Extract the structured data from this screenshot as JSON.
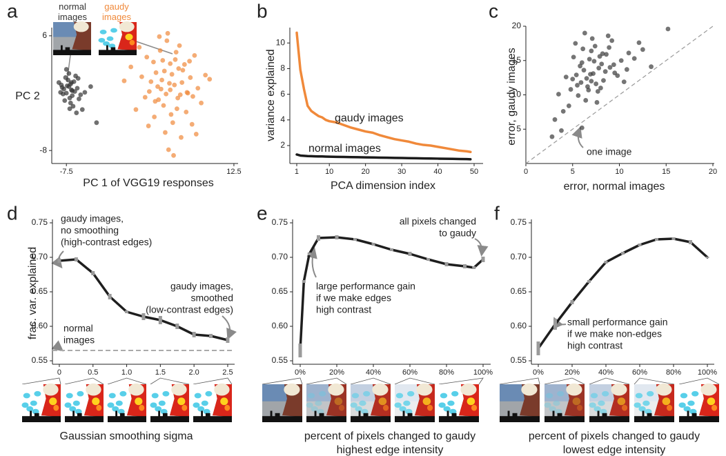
{
  "chart_data": [
    {
      "type": "scatter",
      "panel_label": "a",
      "xlabel": "PC 1 of VGG19 responses",
      "ylabel": "PC 2",
      "xlim": [
        -9,
        13
      ],
      "ylim": [
        -9.5,
        7
      ],
      "xticks": [
        -7.5,
        12.5
      ],
      "yticks": [
        -8,
        6
      ],
      "series": [
        {
          "name": "normal images",
          "color": "#333333",
          "x": [
            -7.8,
            -7.2,
            -6.9,
            -7.5,
            -6.5,
            -7.0,
            -8.0,
            -6.8,
            -7.3,
            -6.2,
            -7.6,
            -7.1,
            -6.6,
            -8.2,
            -7.4,
            -6.9,
            -7.7,
            -6.4,
            -7.0,
            -7.2,
            -5.8,
            -6.1,
            -8.4,
            -7.9,
            -6.7,
            -5.3,
            -4.6,
            -5.6,
            -3.9,
            -6.3,
            -7.5,
            -6.0,
            -7.1,
            -8.1,
            -6.8
          ],
          "values": [
            -0.5,
            -0.2,
            0.3,
            -1.0,
            -0.8,
            0.1,
            -0.3,
            -1.3,
            0.6,
            -0.4,
            0.9,
            -1.6,
            0.4,
            -0.9,
            -0.1,
            -0.6,
            -1.9,
            1.1,
            -2.2,
            1.4,
            -1.2,
            0.8,
            0.3,
            -1.1,
            -2.6,
            -0.9,
            -0.2,
            -3.0,
            -4.6,
            -3.4,
            1.9,
            -1.7,
            -2.9,
            0.0,
            -0.7
          ]
        },
        {
          "name": "gaudy images",
          "color": "#f0893a",
          "x": [
            4.8,
            3.2,
            6.1,
            5.5,
            2.4,
            7.3,
            4.1,
            5.9,
            3.7,
            6.8,
            1.5,
            8.2,
            4.5,
            5.2,
            2.9,
            6.4,
            3.5,
            7.8,
            4.9,
            5.7,
            0.8,
            9.1,
            3.9,
            6.0,
            4.3,
            2.1,
            7.0,
            5.4,
            3.0,
            6.6,
            4.6,
            8.6,
            1.9,
            5.1,
            3.4,
            7.5,
            4.0,
            6.2,
            2.6,
            5.8,
            4.7,
            0.2,
            9.6,
            3.6,
            6.9,
            5.0,
            2.3,
            7.2,
            4.4,
            5.6,
            -0.6,
            8.0,
            3.1,
            6.3,
            4.2,
            1.2,
            5.3,
            7.6,
            3.8,
            4.9
          ],
          "values": [
            0.2,
            1.5,
            -1.2,
            3.1,
            -0.8,
            0.9,
            -2.5,
            2.0,
            4.2,
            -3.3,
            1.0,
            -0.4,
            5.4,
            -4.6,
            2.8,
            1.8,
            -1.8,
            3.6,
            -0.6,
            -2.9,
            -3.0,
            1.2,
            0.6,
            4.8,
            -5.8,
            3.4,
            -1.0,
            0.0,
            -3.9,
            2.5,
            6.3,
            -2.2,
            -1.5,
            1.3,
            -0.2,
            -4.8,
            3.0,
            -6.4,
            0.4,
            -1.6,
            -7.9,
            2.2,
            0.7,
            5.9,
            -0.9,
            -3.6,
            -5.0,
            2.9,
            -1.1,
            4.0,
            0.5,
            -6.0,
            -2.0,
            0.3,
            1.7,
            4.6,
            -8.6,
            -1.4,
            -0.5,
            2.6
          ]
        }
      ]
    },
    {
      "type": "line",
      "panel_label": "b",
      "xlabel": "PCA dimension index",
      "ylabel": "variance explained",
      "xlim": [
        -1,
        52
      ],
      "ylim": [
        0.6,
        11.2
      ],
      "xticks": [
        1,
        10,
        20,
        30,
        40,
        50
      ],
      "yticks": [
        2,
        4,
        6,
        8,
        10
      ],
      "x": [
        1,
        2,
        3,
        4,
        5,
        6,
        7,
        8,
        9,
        10,
        12,
        14,
        16,
        18,
        20,
        22,
        24,
        26,
        28,
        30,
        32,
        34,
        36,
        38,
        40,
        42,
        44,
        46,
        48,
        49
      ],
      "series": [
        {
          "name": "gaudy images",
          "color": "#f0893a",
          "values": [
            10.8,
            7.9,
            6.4,
            5.1,
            4.7,
            4.5,
            4.3,
            4.2,
            4.0,
            3.9,
            3.8,
            3.6,
            3.4,
            3.25,
            3.1,
            3.0,
            2.8,
            2.65,
            2.5,
            2.4,
            2.3,
            2.15,
            2.05,
            2.0,
            1.9,
            1.8,
            1.7,
            1.6,
            1.55,
            1.5
          ]
        },
        {
          "name": "normal images",
          "color": "#1a1a1a",
          "values": [
            1.3,
            1.22,
            1.2,
            1.18,
            1.17,
            1.16,
            1.15,
            1.15,
            1.14,
            1.13,
            1.12,
            1.11,
            1.1,
            1.09,
            1.08,
            1.07,
            1.06,
            1.05,
            1.04,
            1.03,
            1.02,
            1.01,
            1.0,
            0.99,
            0.98,
            0.97,
            0.96,
            0.95,
            0.94,
            0.93
          ]
        }
      ]
    },
    {
      "type": "scatter",
      "panel_label": "c",
      "xlabel": "error, normal images",
      "ylabel": "error, gaudy images",
      "xlim": [
        0,
        20
      ],
      "ylim": [
        0,
        20
      ],
      "xticks": [
        0,
        5,
        10,
        15,
        20
      ],
      "yticks": [
        5,
        10,
        15,
        20
      ],
      "identity_line": true,
      "annotations": [
        [
          "one image"
        ]
      ],
      "series": [
        {
          "color": "#3a3a3a",
          "x": [
            7.2,
            6.5,
            8.1,
            5.9,
            7.8,
            6.8,
            9.0,
            5.4,
            7.5,
            6.2,
            8.6,
            4.8,
            7.0,
            9.5,
            6.0,
            8.3,
            5.6,
            7.4,
            10.2,
            6.6,
            4.3,
            8.9,
            7.7,
            5.1,
            6.9,
            11.0,
            7.1,
            8.0,
            5.8,
            9.8,
            6.4,
            3.5,
            12.1,
            7.3,
            4.6,
            8.5,
            6.1,
            10.5,
            5.3,
            7.9,
            3.1,
            9.2,
            6.7,
            13.4,
            5.0,
            8.8,
            7.6,
            4.0,
            11.6,
            6.3,
            5.5,
            9.4,
            15.2,
            3.8,
            8.2,
            7.0,
            10.8,
            2.8,
            6.0,
            12.5
          ],
          "values": [
            13.1,
            12.4,
            14.5,
            11.8,
            13.9,
            15.2,
            14.0,
            12.9,
            11.6,
            13.6,
            15.9,
            10.8,
            16.4,
            13.2,
            14.7,
            12.1,
            9.9,
            17.1,
            15.0,
            11.2,
            12.6,
            16.9,
            10.5,
            15.5,
            13.0,
            16.1,
            18.2,
            11.0,
            14.2,
            12.8,
            9.2,
            10.1,
            17.6,
            14.9,
            8.4,
            13.4,
            16.7,
            11.9,
            17.5,
            15.6,
            6.4,
            17.9,
            10.7,
            14.1,
            12.3,
            18.6,
            8.9,
            7.6,
            15.3,
            19.0,
            11.4,
            14.4,
            19.6,
            4.8,
            16.0,
            12.0,
            13.7,
            3.9,
            5.2,
            16.6
          ]
        }
      ]
    },
    {
      "type": "line",
      "panel_label": "d",
      "xlabel": "Gaussian smoothing sigma",
      "ylabel": "frac. var. explained",
      "xlim": [
        -0.1,
        2.6
      ],
      "ylim": [
        0.545,
        0.755
      ],
      "xticks": [
        0,
        0.5,
        {
          "value": 1,
          "label": "1.0"
        },
        1.5,
        {
          "value": 2,
          "label": "2.0"
        },
        2.5
      ],
      "yticks": [
        0.55,
        {
          "value": 0.6,
          "label": "0.60"
        },
        0.65,
        {
          "value": 0.7,
          "label": "0.70"
        },
        0.75
      ],
      "hline": 0.565,
      "annotations": [
        [
          "gaudy images,",
          "no smoothing",
          "(high-contrast edges)"
        ],
        [
          "gaudy images,",
          "smoothed",
          "(low-contrast edges)"
        ],
        [
          "normal",
          "images"
        ]
      ],
      "x": [
        0,
        0.25,
        0.5,
        0.75,
        1,
        1.25,
        1.5,
        1.75,
        2,
        2.25,
        2.5
      ],
      "series": [
        {
          "color": "#1e1e1e",
          "values": [
            0.695,
            0.697,
            0.677,
            0.643,
            0.621,
            0.614,
            0.609,
            0.6,
            0.588,
            0.586,
            0.58
          ],
          "errors": [
            0.003,
            0.003,
            0.003,
            0.004,
            0.002,
            0.005,
            0.006,
            0.004,
            0.004,
            0.003,
            0.004
          ]
        }
      ]
    },
    {
      "type": "line",
      "panel_label": "e",
      "xlabel": [
        "percent of pixels changed to gaudy",
        "highest edge intensity"
      ],
      "ylabel": "frac. var. explained",
      "xlim": [
        -4,
        104
      ],
      "ylim": [
        0.545,
        0.755
      ],
      "xticks": [
        {
          "value": 0,
          "label": "0%"
        },
        {
          "value": 20,
          "label": "20%"
        },
        {
          "value": 40,
          "label": "40%"
        },
        {
          "value": 60,
          "label": "60%"
        },
        {
          "value": 80,
          "label": "80%"
        },
        {
          "value": 100,
          "label": "100%"
        }
      ],
      "yticks": [
        0.55,
        {
          "value": 0.6,
          "label": "0.60"
        },
        0.65,
        {
          "value": 0.7,
          "label": "0.70"
        },
        0.75
      ],
      "annotations": [
        [
          "all pixels changed",
          "to gaudy"
        ],
        [
          "large performance gain",
          "if we make edges",
          "high contrast"
        ]
      ],
      "x": [
        0,
        2,
        5,
        10,
        20,
        30,
        40,
        50,
        60,
        70,
        80,
        90,
        95,
        100
      ],
      "series": [
        {
          "color": "#1e1e1e",
          "values": [
            0.565,
            0.665,
            0.705,
            0.728,
            0.729,
            0.726,
            0.719,
            0.711,
            0.705,
            0.697,
            0.69,
            0.687,
            0.685,
            0.697
          ],
          "errors": [
            0.01,
            0.002,
            0.002,
            0.004,
            0.003,
            0.002,
            0.002,
            0.002,
            0.003,
            0.002,
            0.003,
            0.003,
            0.002,
            0.004
          ]
        }
      ]
    },
    {
      "type": "line",
      "panel_label": "f",
      "xlabel": [
        "percent of pixels changed to gaudy",
        "lowest edge intensity"
      ],
      "ylabel": "",
      "xlim": [
        -4,
        104
      ],
      "ylim": [
        0.545,
        0.755
      ],
      "xticks": [
        {
          "value": 0,
          "label": "0%"
        },
        {
          "value": 20,
          "label": "20%"
        },
        {
          "value": 40,
          "label": "40%"
        },
        {
          "value": 60,
          "label": "60%"
        },
        {
          "value": 80,
          "label": "80%"
        },
        {
          "value": 100,
          "label": "100%"
        }
      ],
      "yticks": [
        0.55,
        {
          "value": 0.6,
          "label": "0.60"
        },
        0.65,
        {
          "value": 0.7,
          "label": "0.70"
        },
        0.75
      ],
      "annotations": [
        [
          "small performance gain",
          "if we make non-edges",
          "high contrast"
        ]
      ],
      "x": [
        0,
        10,
        20,
        30,
        40,
        50,
        60,
        70,
        80,
        90,
        100
      ],
      "series": [
        {
          "color": "#1e1e1e",
          "values": [
            0.568,
            0.603,
            0.635,
            0.665,
            0.693,
            0.706,
            0.718,
            0.726,
            0.727,
            0.722,
            0.7
          ],
          "errors": [
            0.01,
            0.008,
            0.003,
            0.002,
            0.002,
            0.002,
            0.002,
            0.002,
            0.002,
            0.003,
            0.001
          ]
        }
      ]
    }
  ]
}
